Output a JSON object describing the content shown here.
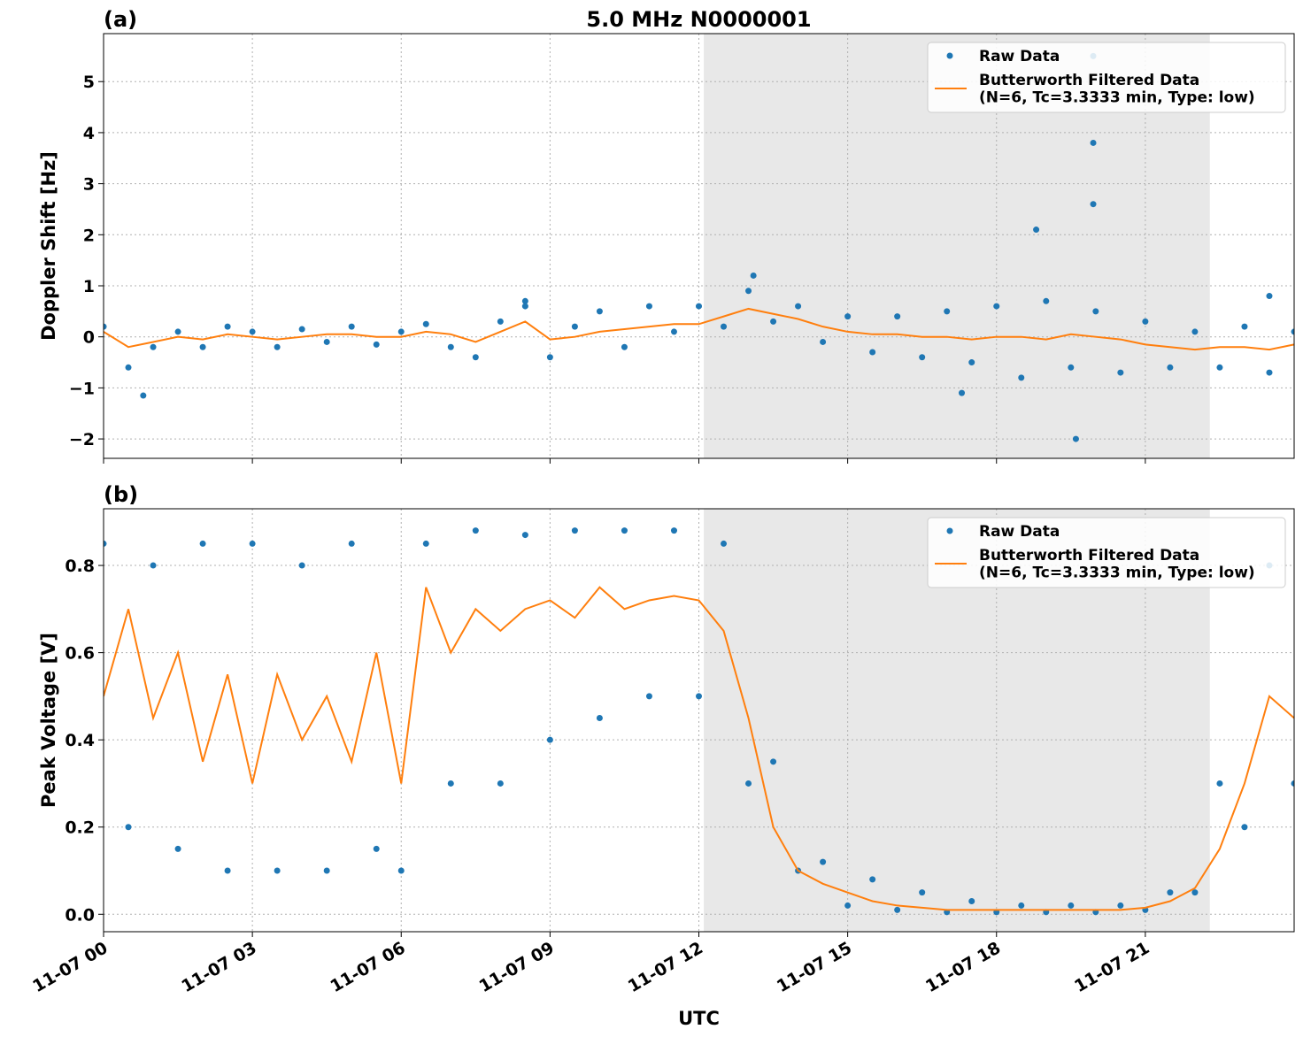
{
  "chart_data": [
    {
      "type": "line",
      "panel_label": "(a)",
      "title": "5.0 MHz N0000001",
      "ylabel": "Doppler Shift [Hz]",
      "xlim": [
        0,
        24
      ],
      "ylim": [
        -2.38,
        5.94
      ],
      "xticks": [
        0,
        3,
        6,
        9,
        12,
        15,
        18,
        21
      ],
      "yticks": [
        {
          "value": -2,
          "label": "−2"
        },
        {
          "value": -1,
          "label": "−1"
        },
        0,
        1,
        2,
        3,
        4,
        5
      ],
      "grid": true,
      "legend": "upper right",
      "shaded_span": [
        12.1,
        22.3
      ],
      "x": [
        0,
        0.5,
        1,
        1.5,
        2,
        2.5,
        3,
        3.5,
        4,
        4.5,
        5,
        5.5,
        6,
        6.5,
        7,
        7.5,
        8,
        8.5,
        9,
        9.5,
        10,
        10.5,
        11,
        11.5,
        12,
        12.5,
        13,
        13.5,
        14,
        14.5,
        15,
        15.5,
        16,
        16.5,
        17,
        17.5,
        18,
        18.5,
        19,
        19.5,
        20,
        20.5,
        21,
        21.5,
        22,
        22.5,
        23,
        23.5,
        24
      ],
      "series": [
        {
          "name": "Raw Data",
          "color": "#1f77b4",
          "mode": "markers",
          "x": [
            0,
            0.5,
            1,
            1.5,
            2,
            2.5,
            3,
            3.5,
            4,
            4.5,
            5,
            5.5,
            6,
            6.5,
            7,
            7.5,
            8,
            8.5,
            9,
            9.5,
            10,
            10.5,
            11,
            11.5,
            12,
            12.5,
            13,
            13.5,
            14,
            14.5,
            15,
            15.5,
            16,
            16.5,
            17,
            17.5,
            18,
            18.5,
            19,
            19.5,
            20,
            20.5,
            21,
            21.5,
            22,
            22.5,
            23,
            23.5,
            24,
            0.8,
            8.5,
            13.1,
            17.3,
            18.8,
            19.6,
            19.95,
            19.95,
            19.95,
            23.5
          ],
          "values": [
            0.2,
            -0.6,
            -0.2,
            0.1,
            -0.2,
            0.2,
            0.1,
            -0.2,
            0.15,
            -0.1,
            0.2,
            -0.15,
            0.1,
            0.25,
            -0.2,
            -0.4,
            0.3,
            0.6,
            -0.4,
            0.2,
            0.5,
            -0.2,
            0.6,
            0.1,
            0.6,
            0.2,
            0.9,
            0.3,
            0.6,
            -0.1,
            0.4,
            -0.3,
            0.4,
            -0.4,
            0.5,
            -0.5,
            0.6,
            -0.8,
            0.7,
            -0.6,
            0.5,
            -0.7,
            0.3,
            -0.6,
            0.1,
            -0.6,
            0.2,
            -0.7,
            0.1,
            -1.15,
            0.7,
            1.2,
            -1.1,
            2.1,
            -2.0,
            5.5,
            3.8,
            2.6,
            0.8
          ]
        },
        {
          "name": "Butterworth Filtered Data\n(N=6, Tc=3.3333 min, Type: low)",
          "color": "#ff7f0e",
          "mode": "line",
          "values": [
            0.1,
            -0.2,
            -0.1,
            0,
            -0.05,
            0.05,
            0,
            -0.05,
            0,
            0.05,
            0.05,
            0,
            0,
            0.1,
            0.05,
            -0.1,
            0.1,
            0.3,
            -0.05,
            0,
            0.1,
            0.15,
            0.2,
            0.25,
            0.25,
            0.4,
            0.55,
            0.45,
            0.35,
            0.2,
            0.1,
            0.05,
            0.05,
            0,
            0,
            -0.05,
            0,
            0,
            -0.05,
            0.05,
            0,
            -0.05,
            -0.15,
            -0.2,
            -0.25,
            -0.2,
            -0.2,
            -0.25,
            -0.15
          ]
        }
      ]
    },
    {
      "type": "line",
      "panel_label": "(b)",
      "ylabel": "Peak Voltage [V]",
      "xlabel": "UTC",
      "xlim": [
        0,
        24
      ],
      "ylim": [
        -0.04,
        0.93
      ],
      "xticks": [
        {
          "value": 0,
          "label": "11-07 00"
        },
        {
          "value": 3,
          "label": "11-07 03"
        },
        {
          "value": 6,
          "label": "11-07 06"
        },
        {
          "value": 9,
          "label": "11-07 09"
        },
        {
          "value": 12,
          "label": "11-07 12"
        },
        {
          "value": 15,
          "label": "11-07 15"
        },
        {
          "value": 18,
          "label": "11-07 18"
        },
        {
          "value": 21,
          "label": "11-07 21"
        }
      ],
      "yticks": [
        {
          "value": 0,
          "label": "0.0"
        },
        0.2,
        0.4,
        0.6,
        0.8
      ],
      "grid": true,
      "legend": "upper right",
      "shaded_span": [
        12.1,
        22.3
      ],
      "x": [
        0,
        0.5,
        1,
        1.5,
        2,
        2.5,
        3,
        3.5,
        4,
        4.5,
        5,
        5.5,
        6,
        6.5,
        7,
        7.5,
        8,
        8.5,
        9,
        9.5,
        10,
        10.5,
        11,
        11.5,
        12,
        12.5,
        13,
        13.5,
        14,
        14.5,
        15,
        15.5,
        16,
        16.5,
        17,
        17.5,
        18,
        18.5,
        19,
        19.5,
        20,
        20.5,
        21,
        21.5,
        22,
        22.5,
        23,
        23.5,
        24
      ],
      "series": [
        {
          "name": "Raw Data",
          "color": "#1f77b4",
          "mode": "markers",
          "values": [
            0.85,
            0.2,
            0.8,
            0.15,
            0.85,
            0.1,
            0.85,
            0.1,
            0.8,
            0.1,
            0.85,
            0.15,
            0.1,
            0.85,
            0.3,
            0.88,
            0.3,
            0.87,
            0.4,
            0.88,
            0.45,
            0.88,
            0.5,
            0.88,
            0.5,
            0.85,
            0.3,
            0.35,
            0.1,
            0.12,
            0.02,
            0.08,
            0.01,
            0.05,
            0.005,
            0.03,
            0.005,
            0.02,
            0.005,
            0.02,
            0.005,
            0.02,
            0.01,
            0.05,
            0.05,
            0.3,
            0.2,
            0.8,
            0.3
          ]
        },
        {
          "name": "Butterworth Filtered Data\n(N=6, Tc=3.3333 min, Type: low)",
          "color": "#ff7f0e",
          "mode": "line",
          "values": [
            0.5,
            0.7,
            0.45,
            0.6,
            0.35,
            0.55,
            0.3,
            0.55,
            0.4,
            0.5,
            0.35,
            0.6,
            0.3,
            0.75,
            0.6,
            0.7,
            0.65,
            0.7,
            0.72,
            0.68,
            0.75,
            0.7,
            0.72,
            0.73,
            0.72,
            0.65,
            0.45,
            0.2,
            0.1,
            0.07,
            0.05,
            0.03,
            0.02,
            0.015,
            0.01,
            0.01,
            0.01,
            0.01,
            0.01,
            0.01,
            0.01,
            0.01,
            0.015,
            0.03,
            0.06,
            0.15,
            0.3,
            0.5,
            0.45
          ]
        }
      ]
    }
  ]
}
